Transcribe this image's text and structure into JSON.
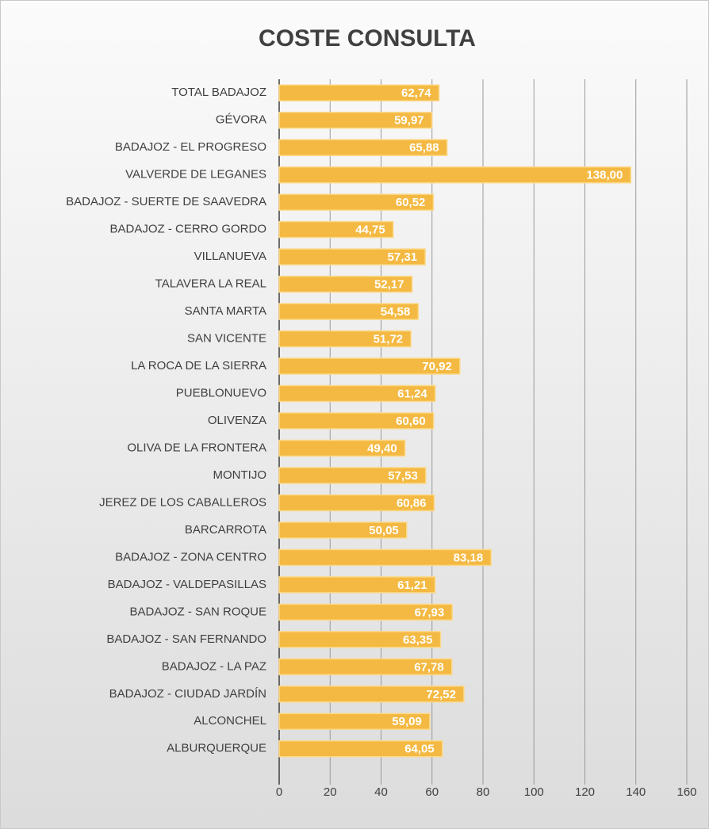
{
  "chart_data": {
    "type": "bar",
    "orientation": "horizontal",
    "title": "COSTE CONSULTA",
    "categories": [
      "TOTAL BADAJOZ",
      "GÉVORA",
      "BADAJOZ - EL PROGRESO",
      "VALVERDE DE LEGANES",
      "BADAJOZ - SUERTE DE SAAVEDRA",
      "BADAJOZ - CERRO GORDO",
      "VILLANUEVA",
      "TALAVERA LA REAL",
      "SANTA MARTA",
      "SAN VICENTE",
      "LA ROCA DE LA SIERRA",
      "PUEBLONUEVO",
      "OLIVENZA",
      "OLIVA DE LA FRONTERA",
      "MONTIJO",
      "JEREZ DE LOS CABALLEROS",
      "BARCARROTA",
      "BADAJOZ - ZONA CENTRO",
      "BADAJOZ - VALDEPASILLAS",
      "BADAJOZ - SAN ROQUE",
      "BADAJOZ - SAN FERNANDO",
      "BADAJOZ - LA PAZ",
      "BADAJOZ - CIUDAD JARDÍN",
      "ALCONCHEL",
      "ALBURQUERQUE"
    ],
    "values": [
      62.74,
      59.97,
      65.88,
      138.0,
      60.52,
      44.75,
      57.31,
      52.17,
      54.58,
      51.72,
      70.92,
      61.24,
      60.6,
      49.4,
      57.53,
      60.86,
      50.05,
      83.18,
      61.21,
      67.93,
      63.35,
      67.78,
      72.52,
      59.09,
      64.05
    ],
    "value_labels": [
      "62,74",
      "59,97",
      "65,88",
      "138,00",
      "60,52",
      "44,75",
      "57,31",
      "52,17",
      "54,58",
      "51,72",
      "70,92",
      "61,24",
      "60,60",
      "49,40",
      "57,53",
      "60,86",
      "50,05",
      "83,18",
      "61,21",
      "67,93",
      "63,35",
      "67,78",
      "72,52",
      "59,09",
      "64,05"
    ],
    "color": "#f4b942",
    "xlim": [
      0,
      160
    ],
    "xticks": [
      0,
      20,
      40,
      60,
      80,
      100,
      120,
      140,
      160
    ],
    "grid": true
  }
}
